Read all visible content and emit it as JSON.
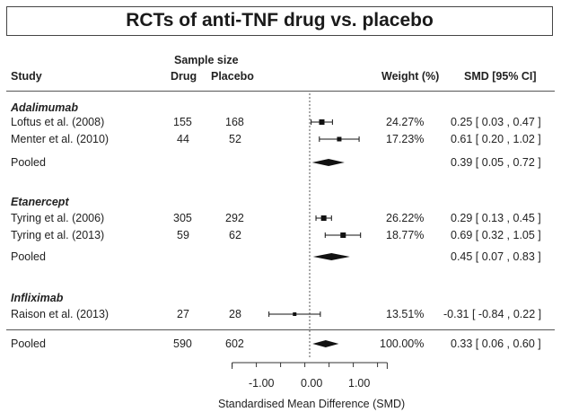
{
  "chart_data": {
    "type": "forest",
    "title": "RCTs of anti-TNF drug vs. placebo",
    "headers": {
      "sample_size": "Sample size",
      "study": "Study",
      "drug": "Drug",
      "placebo": "Placebo",
      "weight": "Weight (%)",
      "smd": "SMD [95% CI]"
    },
    "xlabel": "Standardised Mean Difference (SMD)",
    "xlim": [
      -1.6,
      1.6
    ],
    "ticks": [
      -1.0,
      0.0,
      1.0
    ],
    "tick_labels": [
      "-1.00",
      "0.00",
      "1.00"
    ],
    "reference_line": 0,
    "groups": [
      {
        "name": "Adalimumab",
        "studies": [
          {
            "label": "Loftus et al. (2008)",
            "drug": "155",
            "placebo": "168",
            "weight": "24.27%",
            "smd": 0.25,
            "lo": 0.03,
            "hi": 0.47,
            "ci_text": "0.25 [  0.03 , 0.47 ]"
          },
          {
            "label": "Menter et al. (2010)",
            "drug": "44",
            "placebo": "52",
            "weight": "17.23%",
            "smd": 0.61,
            "lo": 0.2,
            "hi": 1.02,
            "ci_text": "0.61 [  0.20 , 1.02 ]"
          }
        ],
        "pooled": {
          "label": "Pooled",
          "smd": 0.39,
          "lo": 0.05,
          "hi": 0.72,
          "ci_text": "0.39 [ 0.05 , 0.72 ]"
        }
      },
      {
        "name": "Etanercept",
        "studies": [
          {
            "label": "Tyring et al. (2006)",
            "drug": "305",
            "placebo": "292",
            "weight": "26.22%",
            "smd": 0.29,
            "lo": 0.13,
            "hi": 0.45,
            "ci_text": "0.29 [  0.13 , 0.45 ]"
          },
          {
            "label": "Tyring et al. (2013)",
            "drug": "59",
            "placebo": "62",
            "weight": "18.77%",
            "smd": 0.69,
            "lo": 0.32,
            "hi": 1.05,
            "ci_text": "0.69 [  0.32 , 1.05 ]"
          }
        ],
        "pooled": {
          "label": "Pooled",
          "smd": 0.45,
          "lo": 0.07,
          "hi": 0.83,
          "ci_text": "0.45 [ 0.07 , 0.83 ]"
        }
      },
      {
        "name": "Infliximab",
        "studies": [
          {
            "label": "Raison et al. (2013)",
            "drug": "27",
            "placebo": "28",
            "weight": "13.51%",
            "smd": -0.31,
            "lo": -0.84,
            "hi": 0.22,
            "ci_text": "-0.31 [ -0.84 , 0.22 ]"
          }
        ]
      }
    ],
    "overall": {
      "label": "Pooled",
      "drug": "590",
      "placebo": "602",
      "weight": "100.00%",
      "smd": 0.33,
      "lo": 0.06,
      "hi": 0.6,
      "ci_text": "0.33 [  0.06 , 0.60 ]"
    }
  }
}
